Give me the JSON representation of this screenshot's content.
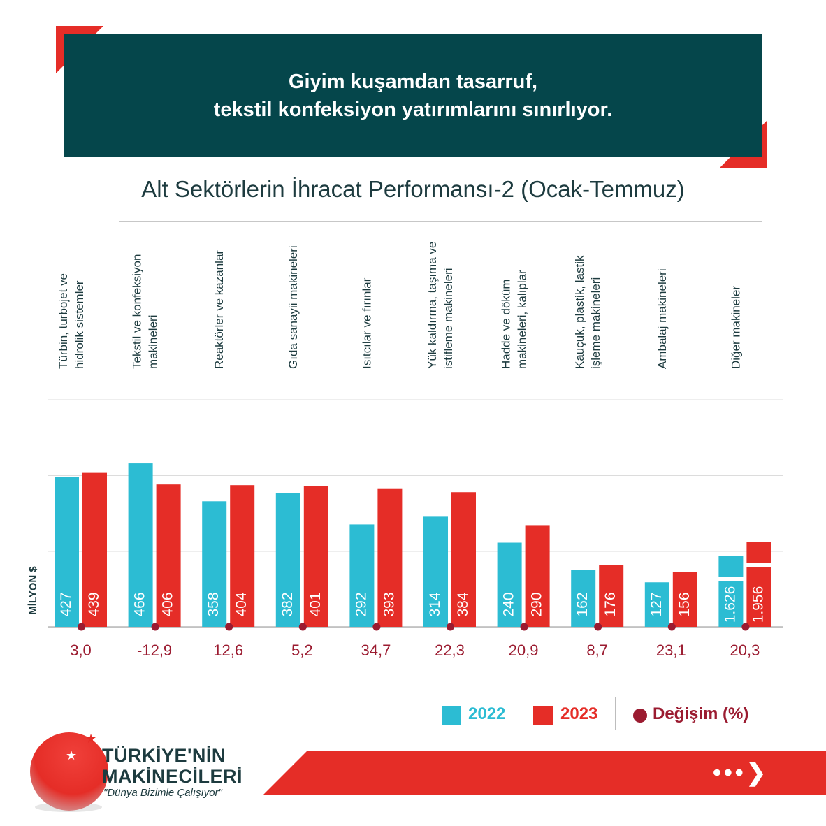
{
  "header": {
    "line1": "Giyim kuşamdan tasarruf,",
    "line2": "tekstil konfeksiyon yatırımlarını sınırlıyor."
  },
  "colors": {
    "series2022": "#2cbcd3",
    "series2023": "#e52d27",
    "change": "#9b1b30",
    "header_bg": "#05464b"
  },
  "chart_data": {
    "type": "bar",
    "title": "Alt Sektörlerin İhracat Performansı-2 (Ocak-Temmuz)",
    "ylabel": "MİLYON $",
    "xlabel": "",
    "categories": [
      [
        "Türbin, turbojet ve",
        "hidrolik sistemler"
      ],
      [
        "Tekstil ve konfeksiyon",
        "makineleri"
      ],
      [
        "Reaktörler ve kazanlar"
      ],
      [
        "Gıda sanayii makineleri"
      ],
      [
        "Isıtcılar ve fırınlar"
      ],
      [
        "Yük kaldırma, taşıma ve",
        "istifleme makineleri"
      ],
      [
        "Hadde ve döküm",
        "makineleri, kalıplar"
      ],
      [
        "Kauçuk, plastik, lastik",
        "işleme makineleri"
      ],
      [
        "Ambalaj makineleri"
      ],
      [
        "Diğer makineler"
      ]
    ],
    "series": [
      {
        "name": "2022",
        "values": [
          427,
          466,
          358,
          382,
          292,
          314,
          240,
          162,
          127,
          1626
        ],
        "labels": [
          "427",
          "466",
          "358",
          "382",
          "292",
          "314",
          "240",
          "162",
          "127",
          "1.626"
        ]
      },
      {
        "name": "2023",
        "values": [
          439,
          406,
          404,
          401,
          393,
          384,
          290,
          176,
          156,
          1956
        ],
        "labels": [
          "439",
          "406",
          "404",
          "401",
          "393",
          "384",
          "290",
          "176",
          "156",
          "1.956"
        ]
      }
    ],
    "change": {
      "name": "Değişim (%)",
      "values": [
        3.0,
        -12.9,
        12.6,
        5.2,
        34.7,
        22.3,
        20.9,
        8.7,
        23.1,
        20.3
      ],
      "labels": [
        "3,0",
        "-12,9",
        "12,6",
        "5,2",
        "34,7",
        "22,3",
        "20,9",
        "8,7",
        "23,1",
        "20,3"
      ]
    },
    "axis_break": {
      "category": "Diğer makineler",
      "note": "last group bars are broken (truncated)"
    },
    "ylim": [
      0,
      600
    ],
    "grid": true
  },
  "legend": {
    "label2022": "2022",
    "label2023": "2023",
    "labelChange": "Değişim (%)"
  },
  "brand": {
    "line1": "TÜRKİYE'NİN",
    "line2": "MAKİNECİLERİ",
    "tagline": "\"Dünya Bizimle Çalışıyor\""
  },
  "nav": {
    "next_icon": "next-arrow-icon",
    "next_glyph": "•••❯"
  }
}
